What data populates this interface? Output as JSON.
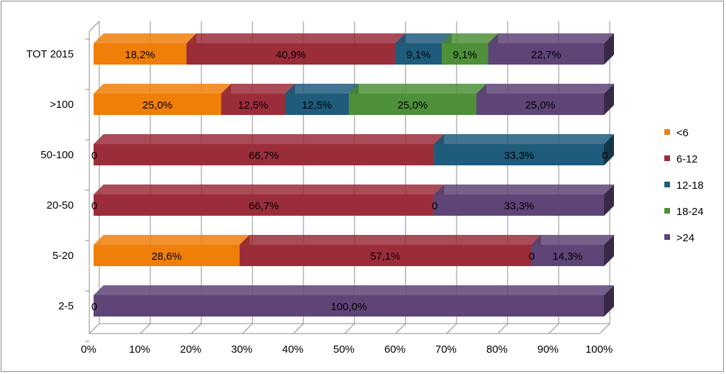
{
  "chart_data": {
    "type": "bar",
    "orientation": "horizontal",
    "stacked": "percent",
    "three_d": true,
    "categories": [
      "TOT 2015",
      ">100",
      "50-100",
      "20-50",
      "5-20",
      "2-5"
    ],
    "series": [
      {
        "name": "<6",
        "color": "#F07F09",
        "values": [
          18.2,
          25.0,
          0,
          0,
          28.6,
          0
        ],
        "labels": [
          "18,2%",
          "25,0%",
          "0",
          "0",
          "28,6%",
          "0"
        ]
      },
      {
        "name": "6-12",
        "color": "#9B2D3A",
        "values": [
          40.9,
          12.5,
          66.7,
          66.7,
          57.1,
          0
        ],
        "labels": [
          "40,9%",
          "12,5%",
          "66,7%",
          "66,7%",
          "57,1%",
          ""
        ]
      },
      {
        "name": "12-18",
        "color": "#1F5C7C",
        "values": [
          9.1,
          12.5,
          33.3,
          0,
          0,
          0
        ],
        "labels": [
          "9,1%",
          "12,5%",
          "33,3%",
          "0",
          "0",
          ""
        ]
      },
      {
        "name": "18-24",
        "color": "#4E8F3A",
        "values": [
          9.1,
          25.0,
          0,
          0,
          0,
          0
        ],
        "labels": [
          "9,1%",
          "25,0%",
          "0",
          "",
          "",
          ""
        ]
      },
      {
        "name": ">24",
        "color": "#5E4477",
        "values": [
          22.7,
          25.0,
          0,
          33.3,
          14.3,
          100.0
        ],
        "labels": [
          "22,7%",
          "25,0%",
          "",
          "33,3%",
          "14,3%",
          "100,0%"
        ]
      }
    ],
    "xaxis": {
      "ticks": [
        "0%",
        "10%",
        "20%",
        "30%",
        "40%",
        "50%",
        "60%",
        "70%",
        "80%",
        "90%",
        "100%"
      ],
      "range": [
        0,
        100
      ]
    },
    "grid": true,
    "legend": "right"
  }
}
